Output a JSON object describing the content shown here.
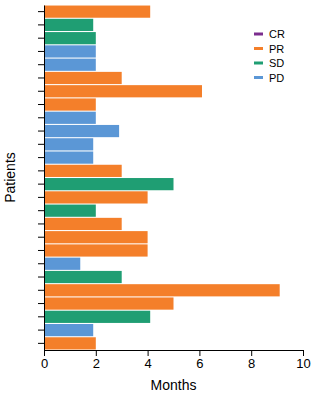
{
  "chart_data": {
    "type": "bar",
    "orientation": "horizontal",
    "x_label": "Months",
    "y_label": "Patients",
    "categories": [
      null,
      null,
      null,
      null,
      null,
      null,
      null,
      null,
      null,
      null,
      null,
      null,
      null,
      null,
      null,
      null,
      null,
      null,
      null,
      null,
      null,
      null,
      null,
      null,
      null,
      null
    ],
    "series": [
      {
        "name": "CR",
        "color": "#7b2d8e",
        "values": [
          null,
          null,
          null,
          null,
          null,
          null,
          null,
          null,
          null,
          null,
          null,
          null,
          null,
          null,
          null,
          null,
          null,
          null,
          null,
          null,
          null,
          null,
          null,
          null,
          null,
          null
        ]
      },
      {
        "name": "PR",
        "color": "#f47f2a",
        "values": [
          4.1,
          null,
          null,
          null,
          null,
          3.0,
          6.1,
          2.0,
          null,
          null,
          null,
          null,
          3.0,
          null,
          4.0,
          null,
          3.0,
          4.0,
          4.0,
          null,
          null,
          9.1,
          5.0,
          null,
          null,
          2.0
        ]
      },
      {
        "name": "SD",
        "color": "#1f9e73",
        "values": [
          null,
          1.9,
          2.0,
          null,
          null,
          null,
          null,
          null,
          null,
          null,
          null,
          null,
          null,
          5.0,
          null,
          2.0,
          null,
          null,
          null,
          null,
          3.0,
          null,
          null,
          4.1,
          null,
          null
        ]
      },
      {
        "name": "PD",
        "color": "#5b97d6",
        "values": [
          null,
          null,
          null,
          2.0,
          2.0,
          null,
          null,
          null,
          2.0,
          2.9,
          1.9,
          1.9,
          null,
          null,
          null,
          null,
          null,
          null,
          null,
          1.4,
          null,
          null,
          null,
          null,
          1.9,
          null
        ]
      }
    ],
    "xlim": [
      0,
      10
    ],
    "xticks": [
      0,
      2,
      4,
      6,
      8,
      10
    ],
    "legend": "upper right"
  }
}
